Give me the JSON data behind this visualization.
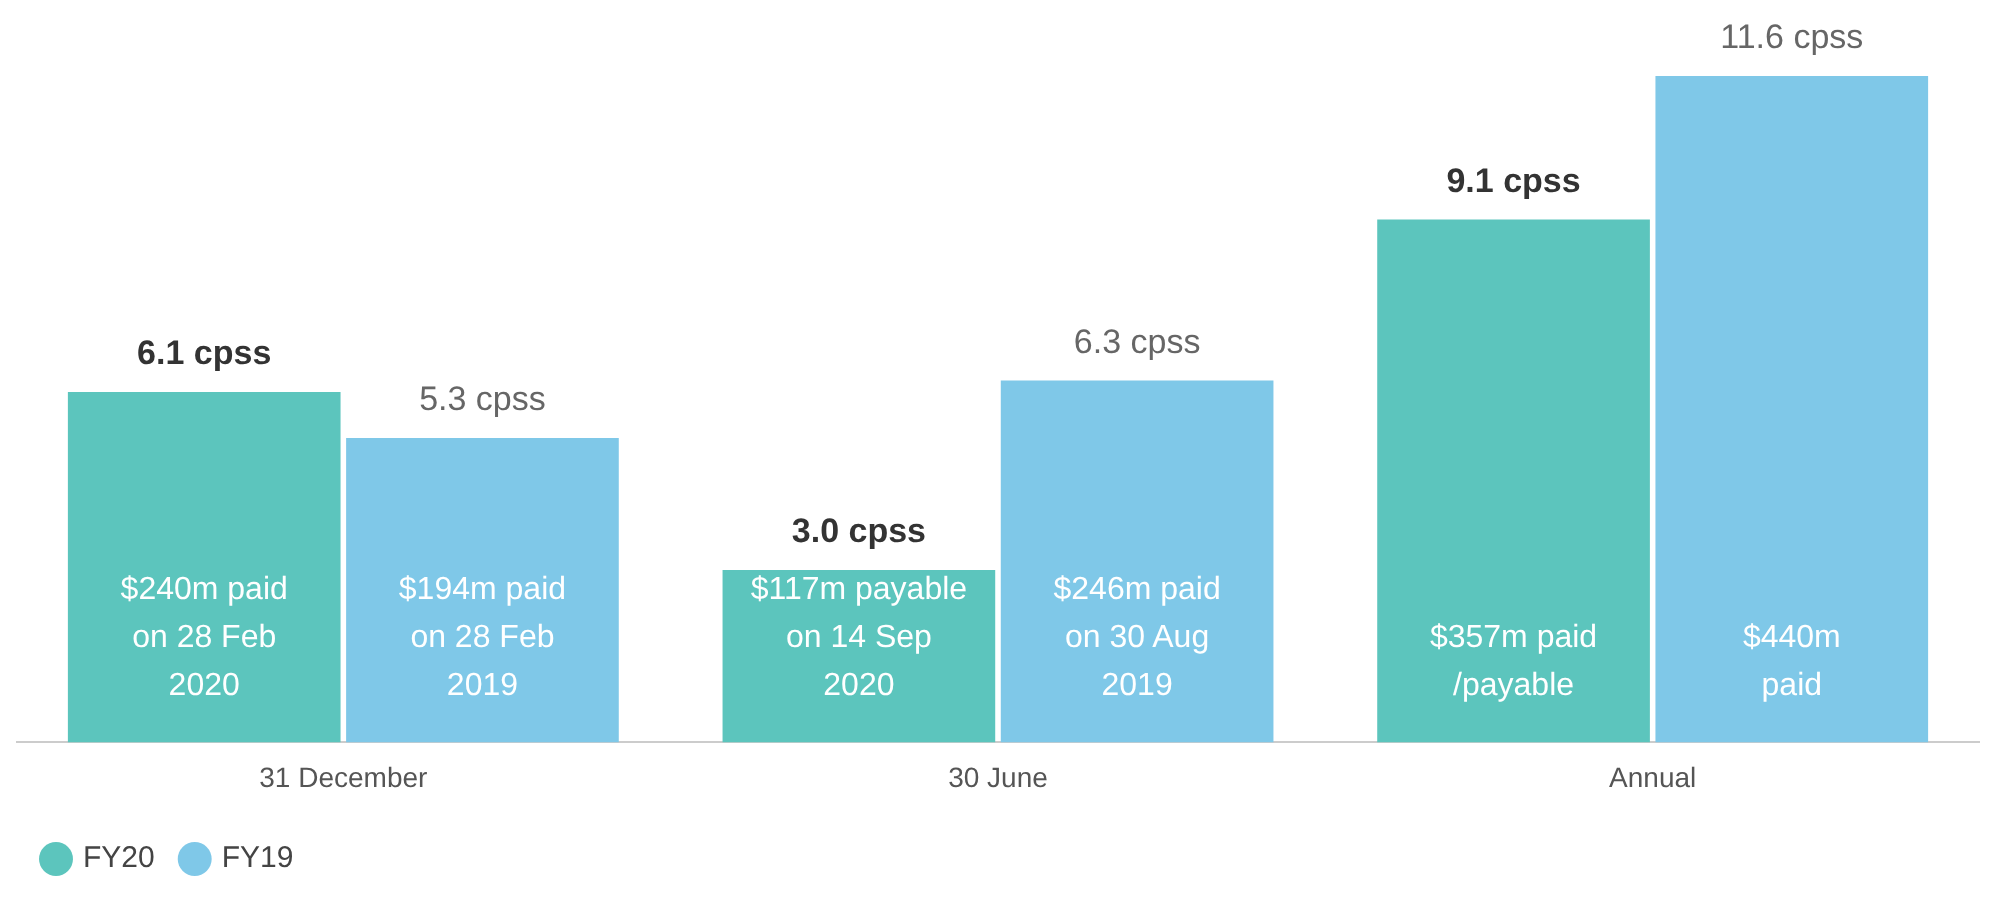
{
  "chart_data": {
    "type": "bar",
    "categories": [
      "31 December",
      "30 June",
      "Annual"
    ],
    "series": [
      {
        "name": "FY20",
        "color": "#5cc5bd",
        "values": [
          6.1,
          3.0,
          9.1
        ],
        "value_labels": [
          "6.1 cpss",
          "3.0 cpss",
          "9.1 cpss"
        ]
      },
      {
        "name": "FY19",
        "color": "#7fc8e8",
        "values": [
          5.3,
          6.3,
          11.6
        ],
        "value_labels": [
          "5.3 cpss",
          "6.3 cpss",
          "11.6 cpss"
        ]
      }
    ],
    "annotations": [
      "$240m paid\non 28 Feb\n2020",
      "$194m paid\non 28 Feb\n2019",
      "$117m payable\non 14 Sep\n2020",
      "$246m paid\non 30 Aug\n2019",
      "$357m paid\n/payable",
      "$440m\npaid"
    ],
    "grid": false,
    "legend": "bottom left"
  }
}
